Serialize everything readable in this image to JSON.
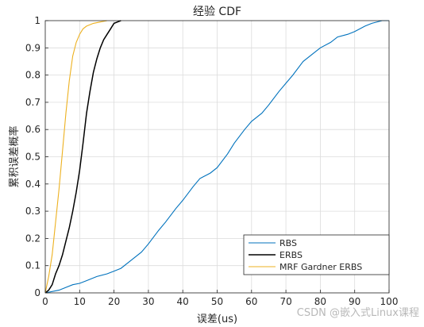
{
  "chart_data": {
    "type": "line",
    "title": "经验 CDF",
    "xlabel": "误差(us)",
    "ylabel": "累积误差概率",
    "xlim": [
      0,
      100
    ],
    "ylim": [
      0,
      1
    ],
    "x_ticks": [
      "0",
      "10",
      "20",
      "30",
      "40",
      "50",
      "60",
      "70",
      "80",
      "90",
      "100"
    ],
    "y_ticks": [
      "0",
      "0.1",
      "0.2",
      "0.3",
      "0.4",
      "0.5",
      "0.6",
      "0.7",
      "0.8",
      "0.9",
      "1"
    ],
    "grid": true,
    "legend_position": "bottom-right",
    "series": [
      {
        "name": "RBS",
        "color": "#0072BD",
        "x": [
          0,
          4,
          6,
          8,
          10,
          12,
          15,
          18,
          20,
          22,
          25,
          28,
          30,
          33,
          35,
          38,
          40,
          43,
          45,
          48,
          50,
          53,
          55,
          58,
          60,
          63,
          65,
          68,
          70,
          72,
          75,
          78,
          80,
          83,
          85,
          88,
          90,
          93,
          95,
          98,
          100
        ],
        "y": [
          0,
          0.01,
          0.02,
          0.03,
          0.035,
          0.045,
          0.06,
          0.07,
          0.08,
          0.09,
          0.12,
          0.15,
          0.18,
          0.23,
          0.26,
          0.31,
          0.34,
          0.39,
          0.42,
          0.44,
          0.46,
          0.51,
          0.55,
          0.6,
          0.63,
          0.66,
          0.69,
          0.74,
          0.77,
          0.8,
          0.85,
          0.88,
          0.9,
          0.92,
          0.94,
          0.95,
          0.96,
          0.98,
          0.99,
          1.0,
          1.0
        ]
      },
      {
        "name": "ERBS",
        "color": "#000000",
        "x": [
          0,
          1,
          2,
          3,
          4,
          5,
          6,
          7,
          8,
          9,
          10,
          11,
          12,
          13,
          14,
          15,
          16,
          17,
          18,
          19,
          20,
          21,
          22
        ],
        "y": [
          0,
          0.01,
          0.03,
          0.07,
          0.1,
          0.14,
          0.19,
          0.24,
          0.3,
          0.37,
          0.45,
          0.55,
          0.66,
          0.74,
          0.81,
          0.86,
          0.9,
          0.93,
          0.95,
          0.97,
          0.99,
          0.995,
          1.0
        ]
      },
      {
        "name": "MRF Gardner ERBS",
        "color": "#EDB120",
        "x": [
          0,
          1,
          2,
          3,
          4,
          5,
          6,
          7,
          8,
          9,
          10,
          11,
          12,
          14,
          16,
          18
        ],
        "y": [
          0,
          0.06,
          0.14,
          0.26,
          0.38,
          0.52,
          0.66,
          0.78,
          0.87,
          0.92,
          0.95,
          0.97,
          0.98,
          0.99,
          0.995,
          1.0
        ]
      }
    ]
  },
  "watermark": "CSDN @嵌入式Linux课程"
}
